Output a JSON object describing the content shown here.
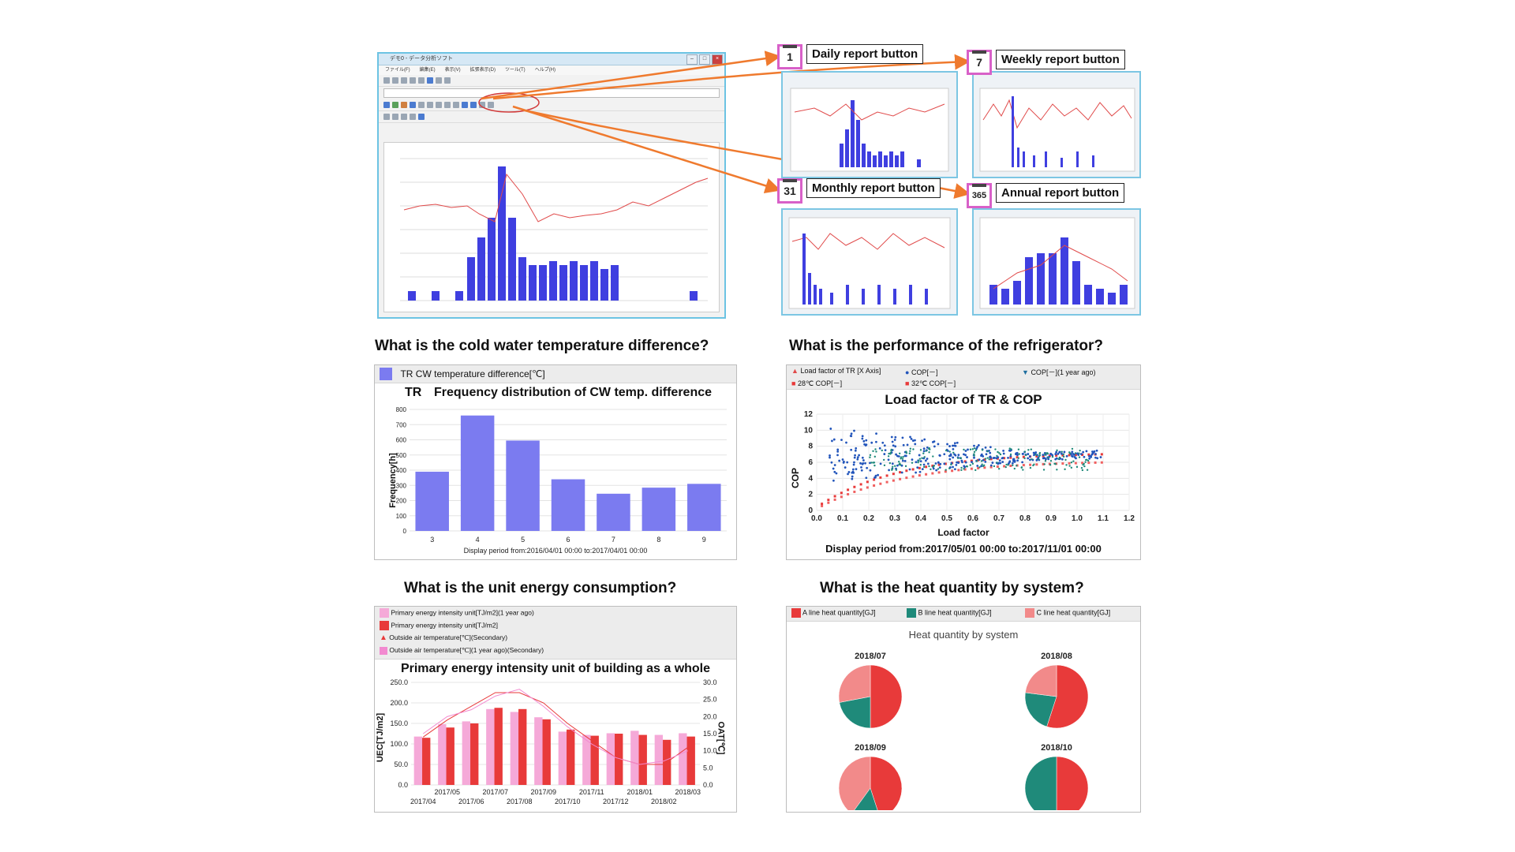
{
  "app": {
    "window_title": "デモ0 - データ分析ソフト",
    "menus": [
      "ファイル(F)",
      "編集(E)",
      "表示(V)",
      "拡張表示(D)",
      "ツール(T)",
      "ヘルプ(H)"
    ]
  },
  "buttons": {
    "daily": {
      "icon": "1",
      "label": "Daily report button"
    },
    "weekly": {
      "icon": "7",
      "label": "Weekly report button"
    },
    "monthly": {
      "icon": "31",
      "label": "Monthly report button"
    },
    "annual": {
      "icon": "365",
      "label": "Annual report button"
    }
  },
  "colors": {
    "bar_blue": "#3f3fe0",
    "line_red": "#e04a4a",
    "arrow_orange": "#ef7a2e",
    "freq_purple": "#7b7bf0",
    "teal": "#1f8a7a",
    "pink_light": "#f5a9d8",
    "red": "#e83a3a",
    "salmon": "#f28a8a"
  },
  "sections": {
    "cw": {
      "question": "What is the cold water temperature difference?",
      "legend": "TR CW temperature difference[℃]",
      "chart_title_prefix": "TR",
      "chart_title": "Frequency distribution of CW temp. difference",
      "ylabel": "Frequency[h]",
      "period": "Display period from:2016/04/01 00:00 to:2017/04/01 00:00"
    },
    "perf": {
      "question": "What is the performance of the refrigerator?",
      "legend": [
        "Load factor of TR [X Axis]",
        "COP[－]",
        "COP[－](1 year ago)",
        "28℃  COP[－]",
        "32℃  COP[－]"
      ],
      "chart_title": "Load factor of TR & COP",
      "ylabel": "COP",
      "xlabel": "Load factor",
      "period": "Display period from:2017/05/01 00:00 to:2017/11/01 00:00"
    },
    "uec": {
      "question": "What is the unit energy consumption?",
      "legend": [
        "Primary energy intensity unit[TJ/m2](1 year ago)",
        "Primary energy intensity unit[TJ/m2]",
        "Outside air temperature[℃](Secondary)",
        "Outside air temperature[℃](1 year ago)(Secondary)"
      ],
      "chart_title": "Primary energy intensity unit of building as a whole",
      "ylabel": "UEC[TJ/m2]",
      "ylabel_right": "OAT[℃]"
    },
    "heat": {
      "question": "What is the heat quantity by system?",
      "legend": [
        "A line heat quantity[GJ]",
        "B line heat quantity[GJ]",
        "C line heat quantity[GJ]"
      ],
      "chart_title": "Heat quantity by system"
    }
  },
  "chart_data": [
    {
      "type": "bar",
      "title": "Frequency distribution of CW temp. difference",
      "xlabel": "",
      "ylabel": "Frequency[h]",
      "categories": [
        "3",
        "4",
        "5",
        "6",
        "7",
        "8",
        "9"
      ],
      "values": [
        390,
        760,
        595,
        340,
        245,
        285,
        310
      ],
      "ylim": [
        0,
        800
      ],
      "yticks": [
        0,
        100,
        200,
        300,
        400,
        500,
        600,
        700,
        800
      ],
      "grid": true
    },
    {
      "type": "scatter",
      "title": "Load factor of TR & COP",
      "xlabel": "Load factor",
      "ylabel": "COP",
      "xlim": [
        0,
        1.2
      ],
      "ylim": [
        0,
        12
      ],
      "xticks": [
        "0.0",
        "0.1",
        "0.2",
        "0.3",
        "0.4",
        "0.5",
        "0.6",
        "0.7",
        "0.8",
        "0.9",
        "1.0",
        "1.1",
        "1.2"
      ],
      "yticks": [
        "0",
        "2",
        "4",
        "6",
        "8",
        "10",
        "12"
      ],
      "series": [
        {
          "name": "COP[－]",
          "trend": "scattered 3-11 across load 0.05-1.1, converging near 6-7 at high load"
        },
        {
          "name": "COP[－](1 year ago)",
          "trend": "scattered 4-8 across load 0.2-1.05"
        },
        {
          "name": "28℃  COP[－]",
          "trend": "rises from ~0.5 at load 0.02 to ~6.8 at load 1.1"
        },
        {
          "name": "32℃  COP[－]",
          "trend": "rises from ~0.3 at load 0.02 to ~6.2 at load 1.1"
        }
      ],
      "grid": true
    },
    {
      "type": "bar",
      "title": "Primary energy intensity unit of building as a whole",
      "ylabel": "UEC[TJ/m2]",
      "ylabel_right": "OAT[℃]",
      "categories": [
        "2017/04",
        "2017/05",
        "2017/06",
        "2017/07",
        "2017/08",
        "2017/09",
        "2017/10",
        "2017/11",
        "2017/12",
        "2018/01",
        "2018/02",
        "2018/03"
      ],
      "ylim": [
        0,
        250
      ],
      "yticks": [
        "0.0",
        "50.0",
        "100.0",
        "150.0",
        "200.0",
        "250.0"
      ],
      "y2lim": [
        0,
        30
      ],
      "y2ticks": [
        "0.0",
        "5.0",
        "10.0",
        "15.0",
        "20.0",
        "25.0",
        "30.0"
      ],
      "series": [
        {
          "name": "Primary energy intensity unit[TJ/m2](1 year ago)",
          "values": [
            118,
            148,
            155,
            185,
            178,
            165,
            130,
            122,
            126,
            132,
            122,
            126
          ]
        },
        {
          "name": "Primary energy intensity unit[TJ/m2]",
          "values": [
            115,
            140,
            150,
            188,
            185,
            160,
            135,
            120,
            125,
            122,
            110,
            118
          ]
        },
        {
          "name": "Outside air temperature[℃](Secondary)",
          "values": [
            14,
            19,
            23,
            27,
            27,
            24,
            18,
            13,
            8,
            6,
            6,
            11
          ]
        },
        {
          "name": "Outside air temperature[℃](1 year ago)(Secondary)",
          "values": [
            15,
            20,
            22,
            26,
            28,
            23,
            17,
            12,
            8,
            6,
            7,
            10
          ]
        }
      ],
      "grid": true
    },
    {
      "type": "pie",
      "title": "Heat quantity by system",
      "charts": [
        {
          "label": "2018/07",
          "values": [
            0.5,
            0.22,
            0.28
          ]
        },
        {
          "label": "2018/08",
          "values": [
            0.55,
            0.22,
            0.23
          ]
        },
        {
          "label": "2018/09",
          "values": [
            0.45,
            0.15,
            0.4
          ]
        },
        {
          "label": "2018/10",
          "values": [
            0.5,
            0.5,
            0.0
          ]
        }
      ],
      "series_names": [
        "A line heat quantity[GJ]",
        "B line heat quantity[GJ]",
        "C line heat quantity[GJ]"
      ]
    }
  ]
}
